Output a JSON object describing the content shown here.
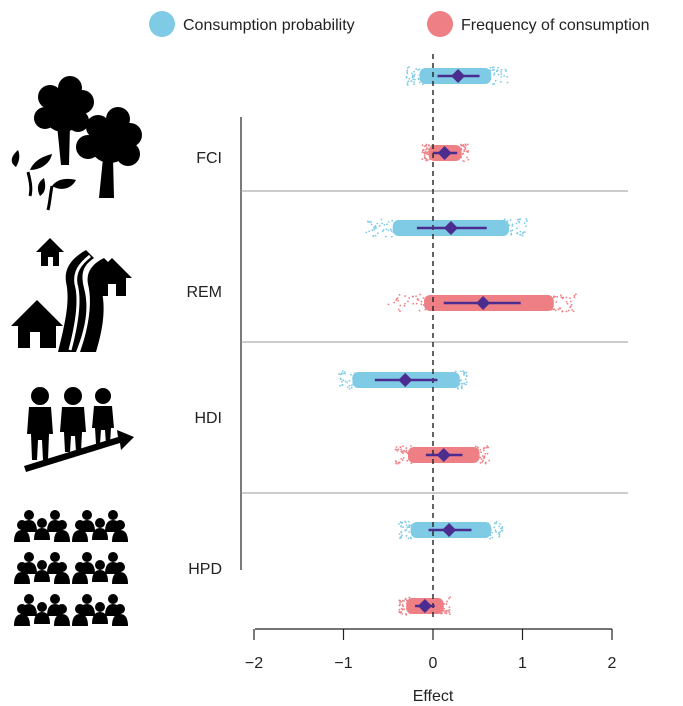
{
  "chart_data": {
    "type": "scatter",
    "title": "",
    "xlabel": "Effect",
    "ylabel": "",
    "xlim": [
      -2,
      2
    ],
    "xticks": [
      -2,
      -1,
      0,
      1,
      2
    ],
    "xtick_labels": [
      "−2",
      "−1",
      "0",
      "1",
      "2"
    ],
    "reference_line": {
      "x": 0,
      "style": "dashed"
    },
    "legend_position": "top",
    "legend": [
      {
        "label": "Consumption probability",
        "color": "#7fcbe6"
      },
      {
        "label": "Frequency of consumption",
        "color": "#ee8085"
      }
    ],
    "point_color": "#4b2d8f",
    "groups": [
      {
        "label": "FCI",
        "icon": "trees-icon",
        "series": [
          {
            "name": "Consumption probability",
            "estimate": 0.28,
            "ci": [
              0.05,
              0.52
            ],
            "band": [
              -0.15,
              0.65
            ],
            "range": [
              -0.3,
              0.85
            ]
          },
          {
            "name": "Frequency of consumption",
            "estimate": 0.13,
            "ci": [
              0.0,
              0.27
            ],
            "band": [
              -0.05,
              0.32
            ],
            "range": [
              -0.12,
              0.4
            ]
          }
        ]
      },
      {
        "label": "REM",
        "icon": "remote-houses-road-icon",
        "series": [
          {
            "name": "Consumption probability",
            "estimate": 0.2,
            "ci": [
              -0.18,
              0.6
            ],
            "band": [
              -0.45,
              0.85
            ],
            "range": [
              -0.75,
              1.05
            ]
          },
          {
            "name": "Frequency of consumption",
            "estimate": 0.56,
            "ci": [
              0.12,
              0.98
            ],
            "band": [
              -0.1,
              1.35
            ],
            "range": [
              -0.5,
              1.6
            ]
          }
        ]
      },
      {
        "label": "HDI",
        "icon": "people-growth-icon",
        "series": [
          {
            "name": "Consumption probability",
            "estimate": -0.31,
            "ci": [
              -0.65,
              0.05
            ],
            "band": [
              -0.9,
              0.3
            ],
            "range": [
              -1.05,
              0.38
            ]
          },
          {
            "name": "Frequency of consumption",
            "estimate": 0.12,
            "ci": [
              -0.08,
              0.33
            ],
            "band": [
              -0.28,
              0.52
            ],
            "range": [
              -0.42,
              0.63
            ]
          }
        ]
      },
      {
        "label": "HPD",
        "icon": "crowd-icon",
        "series": [
          {
            "name": "Consumption probability",
            "estimate": 0.18,
            "ci": [
              -0.05,
              0.43
            ],
            "band": [
              -0.25,
              0.65
            ],
            "range": [
              -0.38,
              0.78
            ]
          },
          {
            "name": "Frequency of consumption",
            "estimate": -0.09,
            "ci": [
              -0.2,
              0.02
            ],
            "band": [
              -0.3,
              0.12
            ],
            "range": [
              -0.38,
              0.2
            ]
          }
        ]
      }
    ]
  }
}
